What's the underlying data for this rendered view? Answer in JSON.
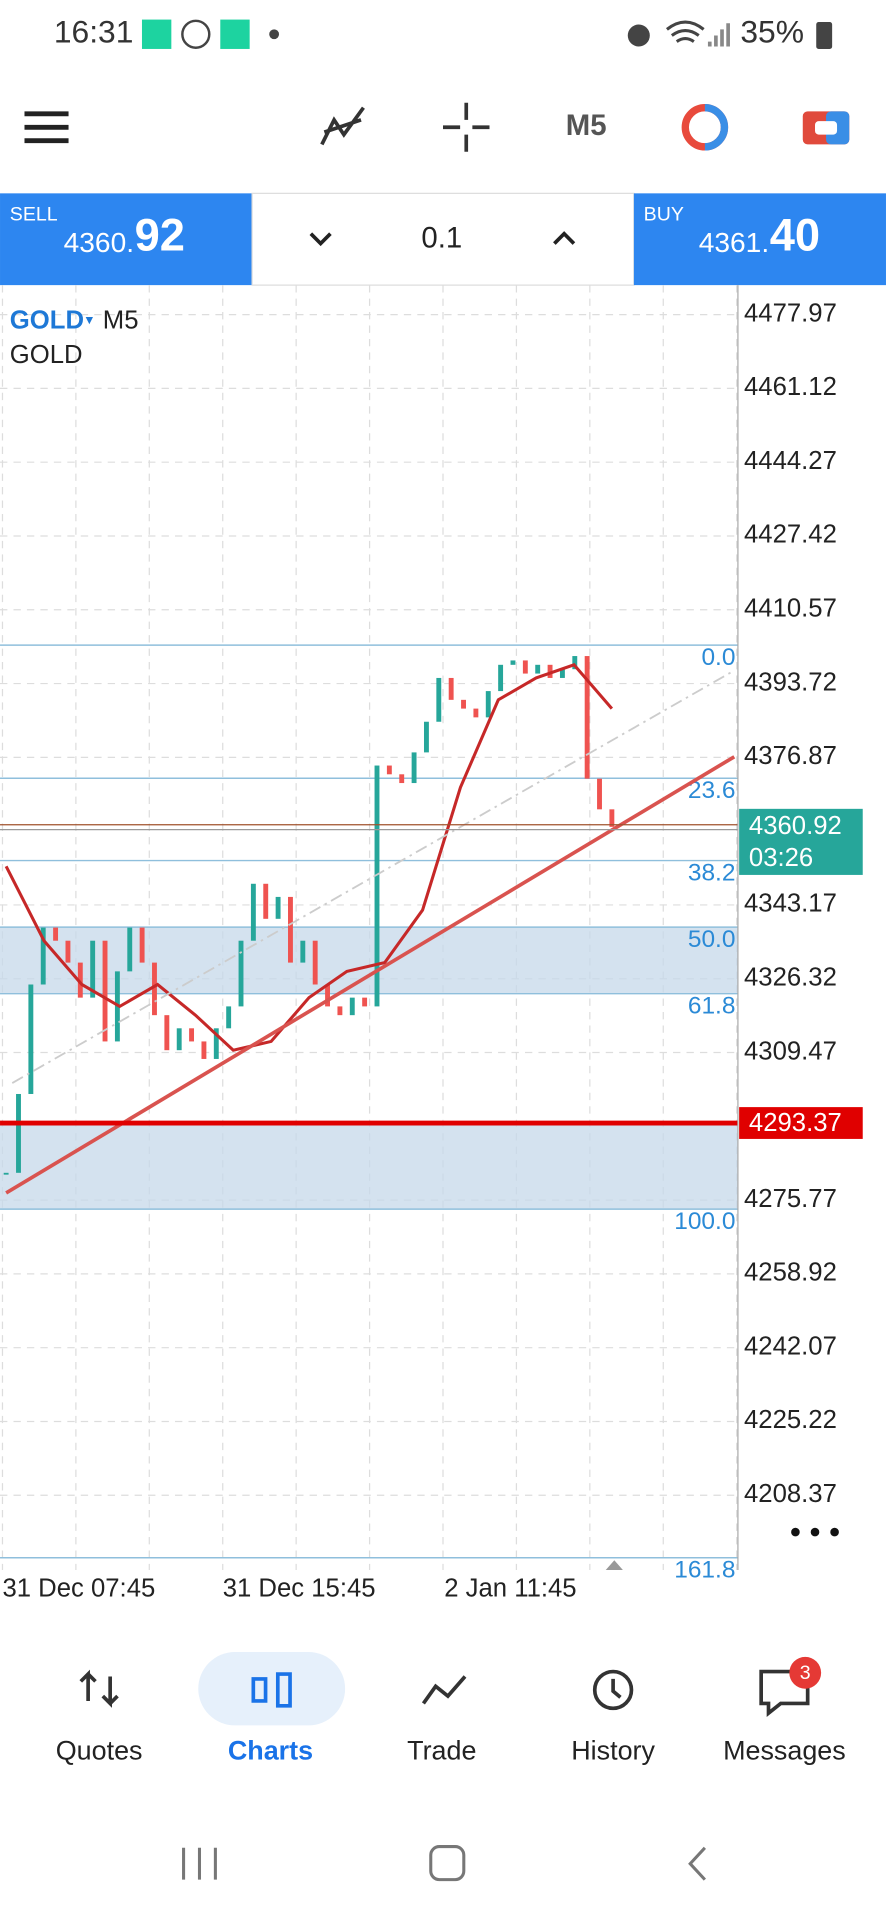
{
  "status_bar": {
    "time": "16:31",
    "battery": "35%"
  },
  "toolbar": {
    "timeframe": "M5"
  },
  "trade_panel": {
    "sell_label": "SELL",
    "sell_price_main": "4360.",
    "sell_price_big": "92",
    "volume": "0.1",
    "buy_label": "BUY",
    "buy_price_main": "4361.",
    "buy_price_big": "40"
  },
  "chart": {
    "symbol": "GOLD",
    "timeframe": "M5",
    "description": "GOLD",
    "ylim": [
      4191.3,
      4484.7
    ],
    "yticks": [
      4477.97,
      4461.12,
      4444.27,
      4427.42,
      4410.57,
      4393.72,
      4376.87,
      4343.17,
      4326.32,
      4309.47,
      4275.77,
      4258.92,
      4242.07,
      4225.22,
      4208.37
    ],
    "current_price": {
      "value": 4360.92,
      "countdown": "03:26"
    },
    "level_line": 4293.37,
    "fib_levels": [
      {
        "value": 4402.5,
        "label": "0.0"
      },
      {
        "value": 4372.1,
        "label": "23.6"
      },
      {
        "value": 4353.3,
        "label": "38.2"
      },
      {
        "value": 4338.1,
        "label": "50.0"
      },
      {
        "value": 4322.9,
        "label": "61.8"
      },
      {
        "value": 4273.7,
        "label": "100.0"
      },
      {
        "value": 4194.1,
        "label": "161.8"
      }
    ],
    "x_labels": [
      "31 Dec 07:45",
      "31 Dec 15:45",
      "2 Jan 11:45"
    ],
    "closes": [
      4282,
      4300,
      4325,
      4338,
      4335,
      4330,
      4322,
      4335,
      4312,
      4328,
      4338,
      4330,
      4318,
      4310,
      4315,
      4312,
      4308,
      4315,
      4320,
      4335,
      4348,
      4340,
      4345,
      4330,
      4335,
      4325,
      4320,
      4318,
      4322,
      4320,
      4375,
      4373,
      4371,
      4378,
      4385,
      4395,
      4390,
      4388,
      4386,
      4392,
      4398,
      4399,
      4396,
      4398,
      4395,
      4397,
      4400,
      4372,
      4365,
      4361
    ],
    "ma": [
      4352,
      4335,
      4325,
      4320,
      4325,
      4318,
      4310,
      4312,
      4322,
      4328,
      4330,
      4342,
      4370,
      4390,
      4395,
      4398,
      4388
    ],
    "trendline": {
      "start": 4277.4,
      "end": 4377
    },
    "projection": {
      "start": 4302.5,
      "end": 4396.7
    }
  },
  "bottom_nav": {
    "items": [
      "Quotes",
      "Charts",
      "Trade",
      "History",
      "Messages"
    ],
    "badge": "3"
  }
}
